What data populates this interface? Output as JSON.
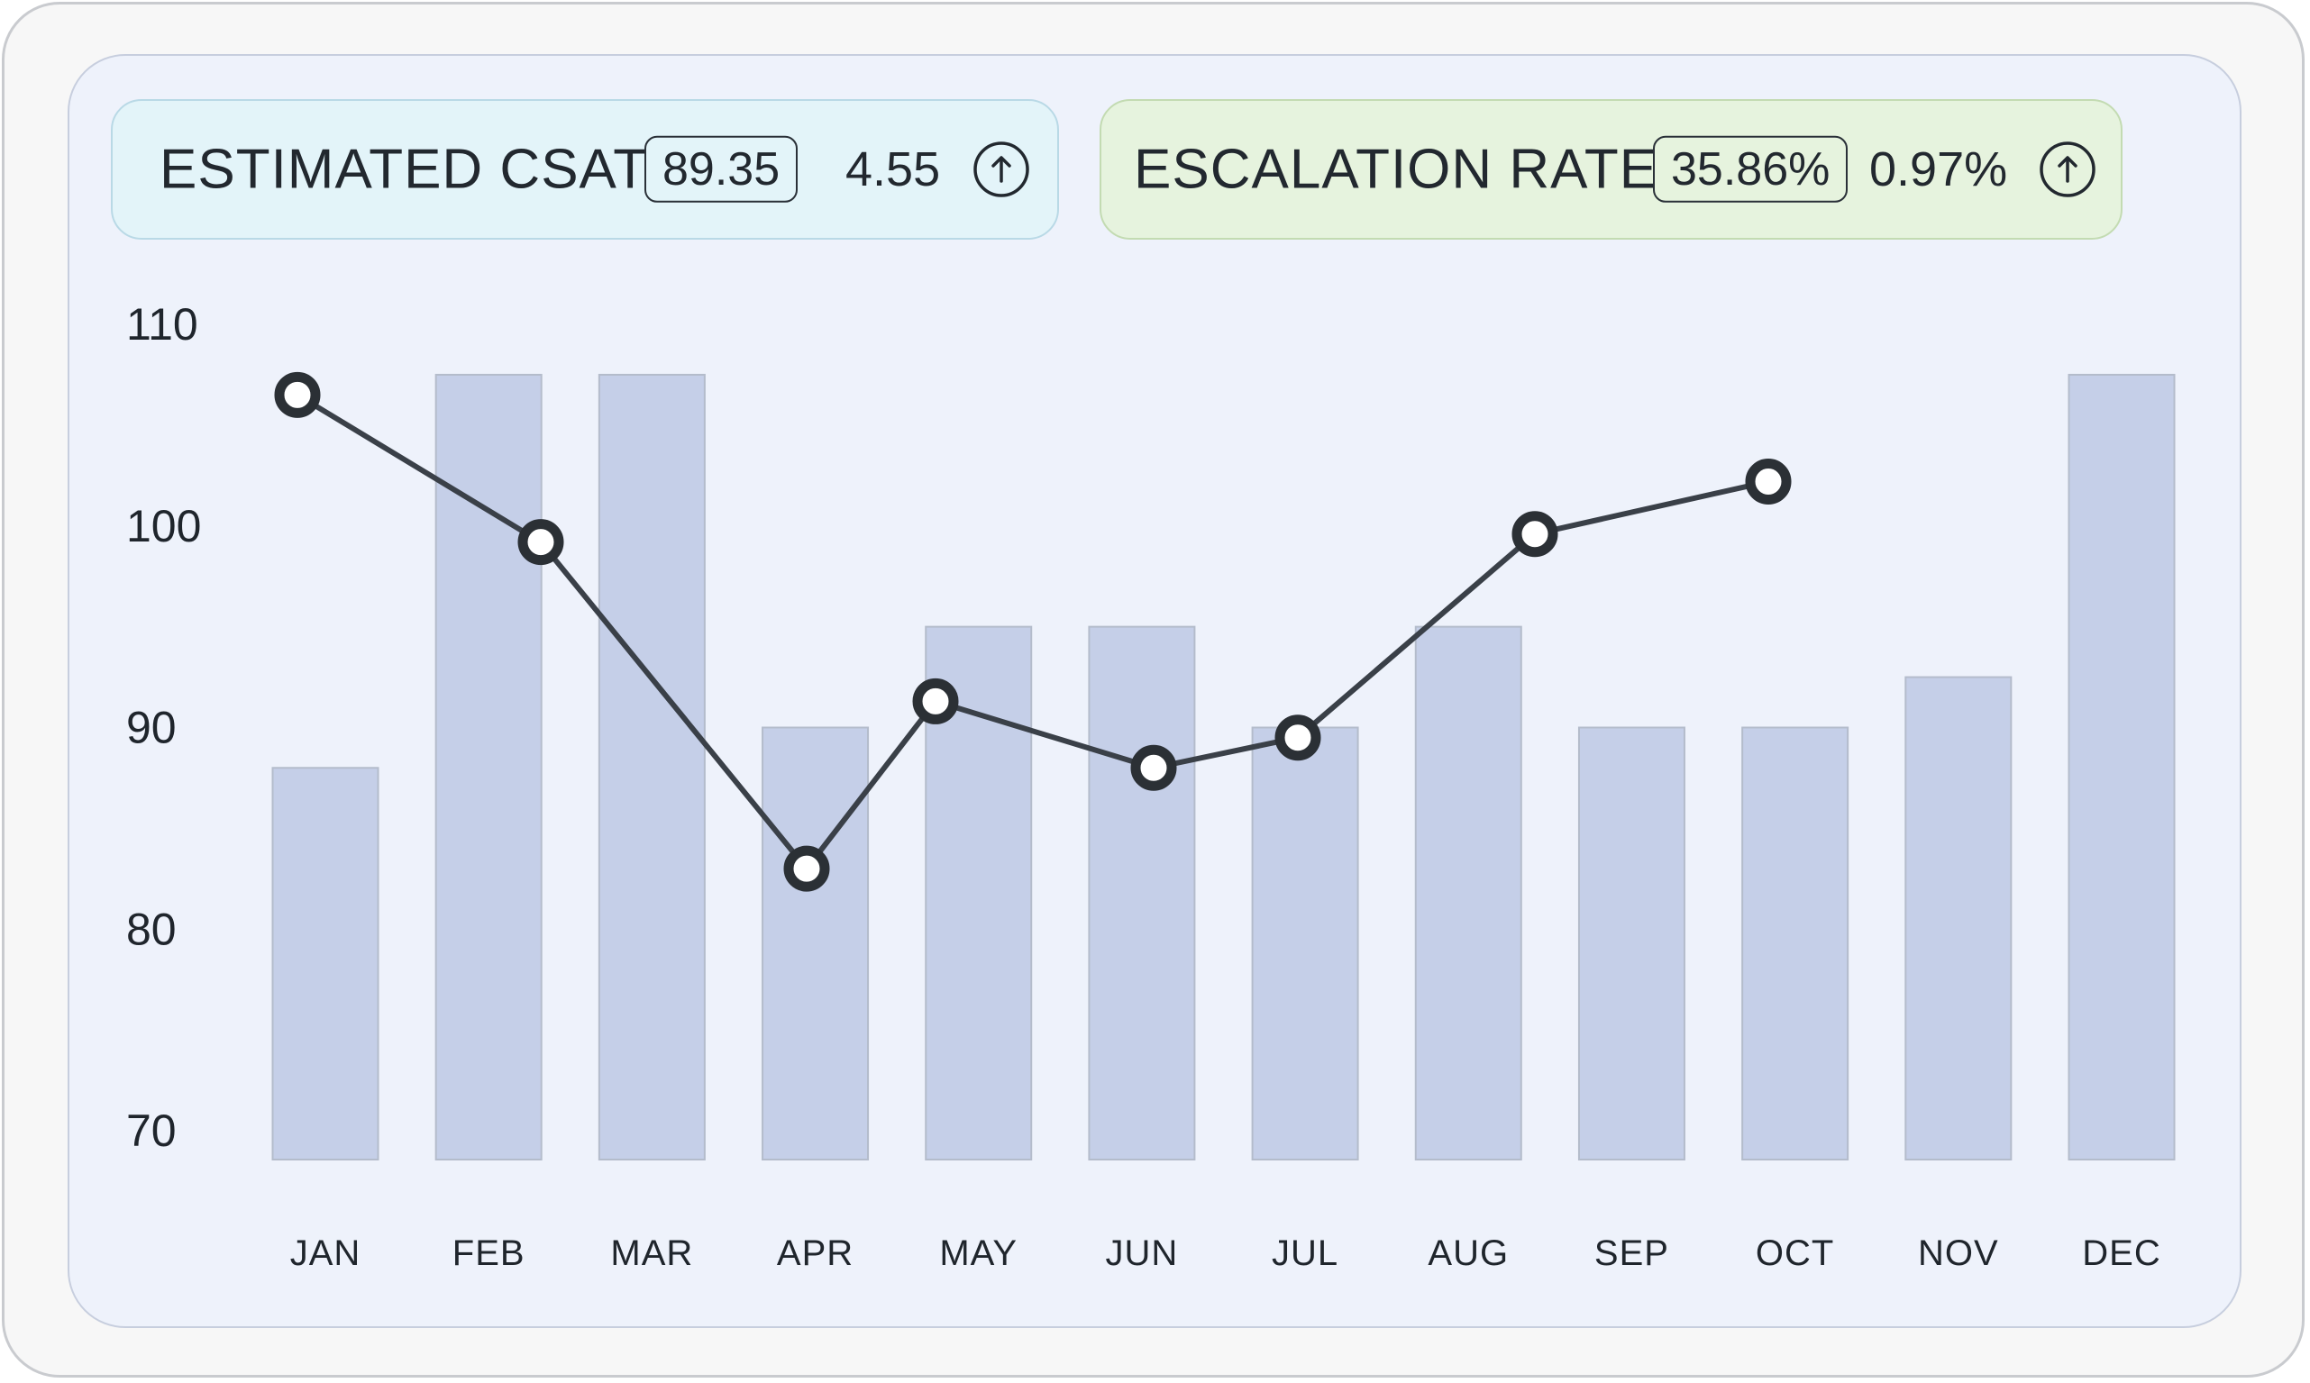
{
  "kpis": [
    {
      "title": "ESTIMATED CSAT",
      "value": "89.35",
      "delta": "4.55",
      "icon": "arrow-up-circle-icon",
      "color": "#e3f4f9"
    },
    {
      "title": "ESCALATION RATE",
      "value": "35.86%",
      "delta": "0.97%",
      "icon": "arrow-up-circle-icon",
      "color": "#e6f3de"
    }
  ],
  "chart_data": {
    "type": "bar",
    "categories": [
      "JAN",
      "FEB",
      "MAR",
      "APR",
      "MAY",
      "JUN",
      "JUL",
      "AUG",
      "SEP",
      "OCT",
      "NOV",
      "DEC"
    ],
    "ylim": [
      70,
      110
    ],
    "yticks": [
      "110",
      "100",
      "90",
      "80",
      "70"
    ],
    "series": [
      {
        "type": "bar",
        "values": [
          88,
          107.5,
          107.5,
          90,
          95,
          95,
          90,
          95,
          90,
          90,
          92.5,
          107.5
        ],
        "color": "#c5cfe8"
      },
      {
        "type": "line",
        "values": [
          106.5,
          99.2,
          null,
          83,
          91.3,
          88,
          89.5,
          99.6,
          null,
          102.2,
          null,
          null
        ],
        "color": "#3a4048"
      }
    ],
    "grid": false,
    "legend": "none"
  }
}
